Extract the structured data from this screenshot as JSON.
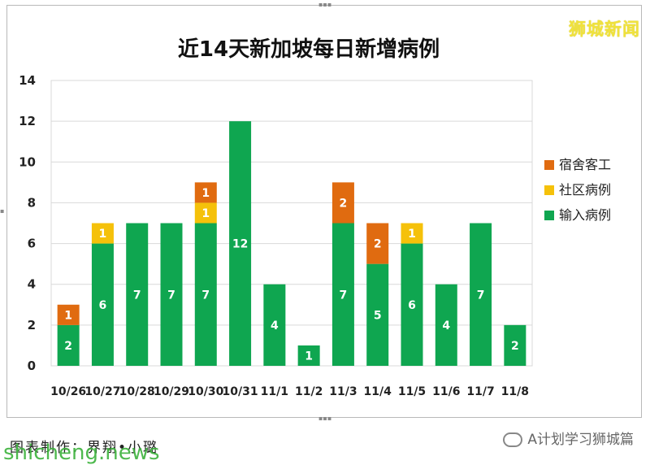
{
  "watermark_top": "狮城新闻",
  "credit": "图表制作：界翔•小璐",
  "watermark_site": "shicheng.news",
  "watermark_wechat": "A计划学习狮城篇",
  "colors": {
    "imported": "#0fa650",
    "community": "#f5c10a",
    "dorm": "#e06b10",
    "grid": "#d9d9d9"
  },
  "chart_data": {
    "type": "bar",
    "stacked": true,
    "title": "近14天新加坡每日新增病例",
    "categories": [
      "10/26",
      "10/27",
      "10/28",
      "10/29",
      "10/30",
      "10/31",
      "11/1",
      "11/2",
      "11/3",
      "11/4",
      "11/5",
      "11/6",
      "11/7",
      "11/8"
    ],
    "series": [
      {
        "name": "输入病例",
        "values": [
          2,
          6,
          7,
          7,
          7,
          12,
          4,
          1,
          7,
          5,
          6,
          4,
          7,
          2
        ]
      },
      {
        "name": "社区病例",
        "values": [
          0,
          1,
          0,
          0,
          1,
          0,
          0,
          0,
          0,
          0,
          1,
          0,
          0,
          0
        ]
      },
      {
        "name": "宿舍客工",
        "values": [
          1,
          0,
          0,
          0,
          1,
          0,
          0,
          0,
          2,
          2,
          0,
          0,
          0,
          0
        ]
      }
    ],
    "ylim": [
      0,
      14
    ],
    "yticks": [
      0,
      2,
      4,
      6,
      8,
      10,
      12,
      14
    ],
    "legend_position": "right",
    "legend_order": [
      "宿舍客工",
      "社区病例",
      "输入病例"
    ],
    "grid": true,
    "data_labels": true
  }
}
